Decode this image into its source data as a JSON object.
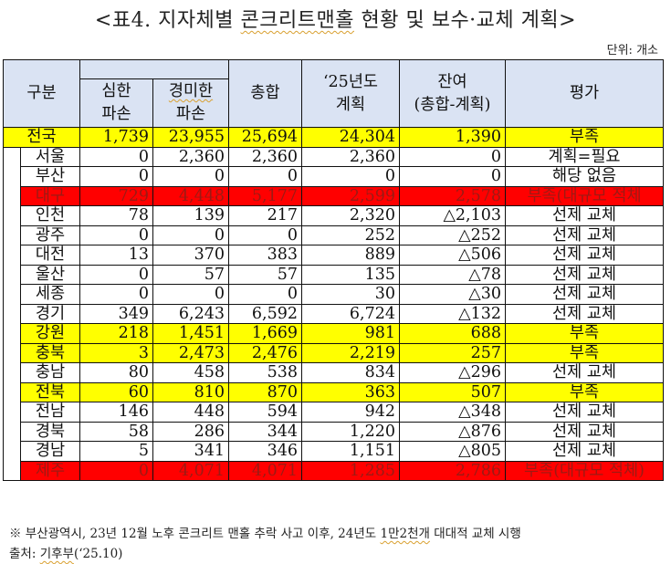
{
  "title": {
    "prefix": "<표4. 지자체별 ",
    "underlined": "콘크리트맨홀",
    "suffix": " 현황 및 보수·교체 계획>"
  },
  "unit_label": "단위: 개소",
  "table": {
    "headers": {
      "region": "구분",
      "severe_line1": "심한",
      "severe_line2": "파손",
      "minor_line1": "경미한",
      "minor_line2": "파손",
      "total": "총합",
      "plan_line1": "‘25년도",
      "plan_line2": "계획",
      "remain_line1": "잔여",
      "remain_line2": "(총합-계획)",
      "eval": "평가"
    },
    "rows": [
      {
        "region": "전국",
        "severe": "1,739",
        "minor": "23,955",
        "total": "25,694",
        "plan": "24,304",
        "remain": "1,390",
        "eval": "부족",
        "highlight": "yellow",
        "level": "national"
      },
      {
        "region": "서울",
        "severe": "0",
        "minor": "2,360",
        "total": "2,360",
        "plan": "2,360",
        "remain": "0",
        "eval": "계획=필요",
        "highlight": "none",
        "level": "sub"
      },
      {
        "region": "부산",
        "severe": "0",
        "minor": "0",
        "total": "0",
        "plan": "0",
        "remain": "0",
        "eval": "해당 없음",
        "highlight": "none",
        "level": "sub"
      },
      {
        "region": "대구",
        "severe": "729",
        "minor": "4,448",
        "total": "5,177",
        "plan": "2,599",
        "remain": "2,578",
        "eval": "부족(대규모 적체",
        "highlight": "red",
        "level": "sub"
      },
      {
        "region": "인천",
        "severe": "78",
        "minor": "139",
        "total": "217",
        "plan": "2,320",
        "remain": "△2,103",
        "eval": "선제 교체",
        "highlight": "none",
        "level": "sub"
      },
      {
        "region": "광주",
        "severe": "0",
        "minor": "0",
        "total": "0",
        "plan": "252",
        "remain": "△252",
        "eval": "선제 교체",
        "highlight": "none",
        "level": "sub"
      },
      {
        "region": "대전",
        "severe": "13",
        "minor": "370",
        "total": "383",
        "plan": "889",
        "remain": "△506",
        "eval": "선제 교체",
        "highlight": "none",
        "level": "sub"
      },
      {
        "region": "울산",
        "severe": "0",
        "minor": "57",
        "total": "57",
        "plan": "135",
        "remain": "△78",
        "eval": "선제 교체",
        "highlight": "none",
        "level": "sub"
      },
      {
        "region": "세종",
        "severe": "0",
        "minor": "0",
        "total": "0",
        "plan": "30",
        "remain": "△30",
        "eval": "선제 교체",
        "highlight": "none",
        "level": "sub"
      },
      {
        "region": "경기",
        "severe": "349",
        "minor": "6,243",
        "total": "6,592",
        "plan": "6,724",
        "remain": "△132",
        "eval": "선제 교체",
        "highlight": "none",
        "level": "sub"
      },
      {
        "region": "강원",
        "severe": "218",
        "minor": "1,451",
        "total": "1,669",
        "plan": "981",
        "remain": "688",
        "eval": "부족",
        "highlight": "yellow",
        "level": "sub"
      },
      {
        "region": "충북",
        "severe": "3",
        "minor": "2,473",
        "total": "2,476",
        "plan": "2,219",
        "remain": "257",
        "eval": "부족",
        "highlight": "yellow",
        "level": "sub"
      },
      {
        "region": "충남",
        "severe": "80",
        "minor": "458",
        "total": "538",
        "plan": "834",
        "remain": "△296",
        "eval": "선제 교체",
        "highlight": "none",
        "level": "sub"
      },
      {
        "region": "전북",
        "severe": "60",
        "minor": "810",
        "total": "870",
        "plan": "363",
        "remain": "507",
        "eval": "부족",
        "highlight": "yellow",
        "level": "sub"
      },
      {
        "region": "전남",
        "severe": "146",
        "minor": "448",
        "total": "594",
        "plan": "942",
        "remain": "△348",
        "eval": "선제 교체",
        "highlight": "none",
        "level": "sub"
      },
      {
        "region": "경북",
        "severe": "58",
        "minor": "286",
        "total": "344",
        "plan": "1,220",
        "remain": "△876",
        "eval": "선제 교체",
        "highlight": "none",
        "level": "sub"
      },
      {
        "region": "경남",
        "severe": "5",
        "minor": "341",
        "total": "346",
        "plan": "1,151",
        "remain": "△805",
        "eval": "선제 교체",
        "highlight": "none",
        "level": "sub"
      },
      {
        "region": "제주",
        "severe": "0",
        "minor": "4,071",
        "total": "4,071",
        "plan": "1,285",
        "remain": "2,786",
        "eval": "부족(대규모 적체)",
        "highlight": "red",
        "level": "sub"
      }
    ]
  },
  "notes": {
    "note1_prefix": "※ 부산광역시, 23년 12월 노후 콘크리트 맨홀 추락 사고 이후, 24년도 ",
    "note1_underlined": "1만2천개",
    "note1_suffix": " 대대적 교체 시행",
    "source_prefix": "출처: ",
    "source_underlined": "기후부",
    "source_suffix": "(‘25.10)"
  },
  "colors": {
    "header_bg": "#dae3f3",
    "highlight_yellow": "#ffff00",
    "highlight_red": "#ff0000",
    "red_row_text": "#9c1a14"
  }
}
